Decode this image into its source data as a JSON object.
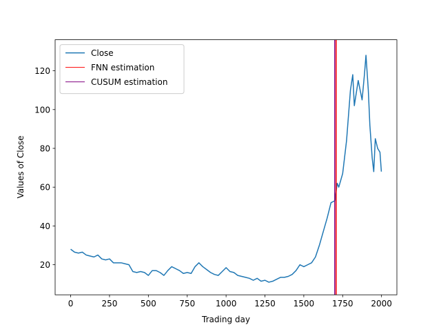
{
  "chart_data": {
    "type": "line",
    "xlabel": "Trading day",
    "ylabel": "Values of Close",
    "xlim": [
      -99.95,
      2098.95
    ],
    "ylim": [
      4.5,
      136
    ],
    "xticks": [
      0,
      250,
      500,
      750,
      1000,
      1250,
      1500,
      1750,
      2000
    ],
    "yticks": [
      20,
      40,
      60,
      80,
      100,
      120
    ],
    "grid": false,
    "legend": "upper left",
    "series": [
      {
        "name": "Close",
        "color": "#1f77b4",
        "x": [
          0,
          25,
          50,
          75,
          100,
          125,
          150,
          175,
          200,
          225,
          250,
          275,
          300,
          325,
          350,
          375,
          400,
          425,
          450,
          475,
          500,
          525,
          550,
          575,
          600,
          625,
          650,
          675,
          700,
          725,
          750,
          775,
          800,
          825,
          850,
          875,
          900,
          925,
          950,
          975,
          1000,
          1025,
          1050,
          1075,
          1100,
          1125,
          1150,
          1175,
          1200,
          1225,
          1250,
          1275,
          1300,
          1325,
          1350,
          1375,
          1400,
          1425,
          1450,
          1475,
          1500,
          1525,
          1550,
          1575,
          1600,
          1625,
          1650,
          1675,
          1700,
          1715,
          1725,
          1750,
          1775,
          1800,
          1815,
          1825,
          1850,
          1875,
          1890,
          1900,
          1915,
          1925,
          1940,
          1950,
          1960,
          1975,
          1990,
          1999
        ],
        "values": [
          28,
          26.5,
          26,
          26.5,
          25,
          24.5,
          24,
          25,
          23,
          22.5,
          23,
          21,
          21,
          21,
          20.5,
          20,
          16.5,
          16,
          16.5,
          16,
          14.5,
          17,
          17,
          16,
          14.5,
          17,
          19,
          18,
          17,
          15.5,
          16,
          15.5,
          19,
          21,
          19,
          17.5,
          16,
          15,
          14.5,
          16.5,
          18.5,
          16.5,
          16,
          14.5,
          14,
          13.5,
          13,
          12,
          13,
          11.5,
          12,
          11,
          11.5,
          12.5,
          13.5,
          13.5,
          14,
          15,
          17,
          20,
          19,
          20,
          21,
          24,
          30,
          37,
          44,
          52,
          53,
          62,
          60,
          67,
          84,
          110,
          118,
          102,
          115,
          105,
          118,
          128,
          110,
          92,
          75,
          68,
          85,
          80,
          78,
          68
        ]
      },
      {
        "name": "FNN estimation",
        "color": "#ff0000",
        "vline": 1708
      },
      {
        "name": "CUSUM estimation",
        "color": "#800080",
        "vline": 1699
      }
    ]
  }
}
